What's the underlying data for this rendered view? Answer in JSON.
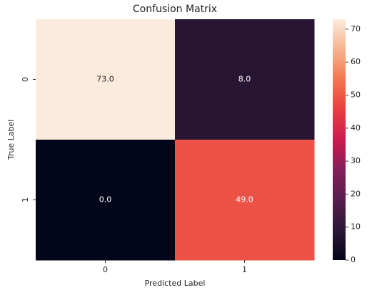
{
  "chart_data": {
    "type": "heatmap",
    "title": "Confusion Matrix",
    "xlabel": "Predicted Label",
    "ylabel": "True Label",
    "x_categories": [
      "0",
      "1"
    ],
    "y_categories": [
      "0",
      "1"
    ],
    "values": [
      [
        73,
        8
      ],
      [
        0,
        49
      ]
    ],
    "value_labels": [
      [
        "73.0",
        "8.0"
      ],
      [
        "0.0",
        "49.0"
      ]
    ],
    "colormap": [
      "#03051a",
      "#2c1737",
      "#571e4f",
      "#841e5a",
      "#cb1b4f",
      "#e83f3f",
      "#f37651",
      "#f6b48e",
      "#faebdd"
    ],
    "clim": [
      0,
      73
    ],
    "cticks": [
      0,
      10,
      20,
      30,
      40,
      50,
      60,
      70
    ]
  }
}
